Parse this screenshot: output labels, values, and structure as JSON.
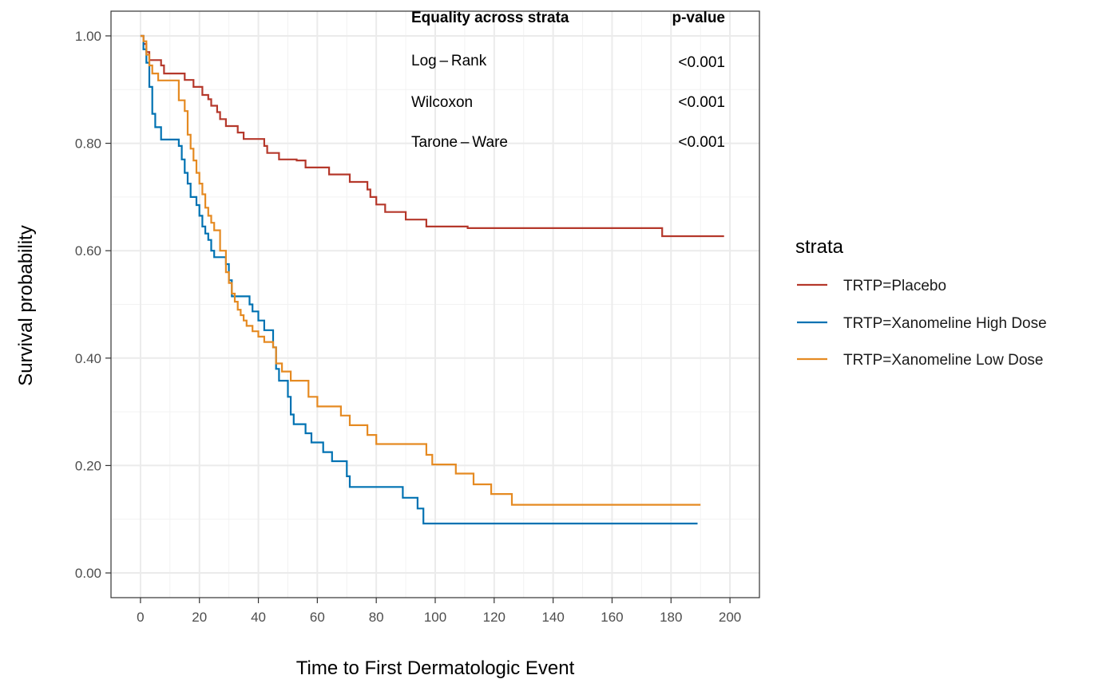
{
  "chart_data": {
    "type": "line",
    "step": true,
    "xlabel": "Time to First Dermatologic Event",
    "ylabel": "Survival probability",
    "xlim": [
      -10,
      210
    ],
    "ylim": [
      -0.046,
      1.046
    ],
    "x_ticks": [
      0,
      20,
      40,
      60,
      80,
      100,
      120,
      140,
      160,
      180,
      200
    ],
    "x_tick_labels": [
      "0",
      "20",
      "40",
      "60",
      "80",
      "100",
      "120",
      "140",
      "160",
      "180",
      "200"
    ],
    "y_ticks": [
      0,
      0.2,
      0.4,
      0.6,
      0.8,
      1.0
    ],
    "y_tick_labels": [
      "0.00",
      "0.20",
      "0.40",
      "0.60",
      "0.80",
      "1.00"
    ],
    "grid": true,
    "legend": {
      "title": "strata",
      "position": "right",
      "entries": [
        "TRTP=Placebo",
        "TRTP=Xanomeline High Dose",
        "TRTP=Xanomeline Low Dose"
      ]
    },
    "series": [
      {
        "name": "TRTP=Placebo",
        "color": "#b5382b",
        "x": [
          0,
          1,
          2,
          3,
          7,
          8,
          15,
          18,
          21,
          23,
          24,
          26,
          27,
          29,
          33,
          35,
          42,
          43,
          47,
          53,
          56,
          64,
          71,
          77,
          78,
          80,
          83,
          90,
          97,
          111,
          177,
          198
        ],
        "y": [
          1.0,
          0.985,
          0.97,
          0.955,
          0.945,
          0.93,
          0.918,
          0.905,
          0.89,
          0.882,
          0.87,
          0.858,
          0.845,
          0.832,
          0.82,
          0.808,
          0.795,
          0.782,
          0.77,
          0.768,
          0.755,
          0.742,
          0.728,
          0.714,
          0.7,
          0.686,
          0.672,
          0.658,
          0.645,
          0.642,
          0.627,
          0.627
        ]
      },
      {
        "name": "TRTP=Xanomeline High Dose",
        "color": "#0072b2",
        "x": [
          0,
          1,
          2,
          3,
          4,
          5,
          7,
          13,
          14,
          15,
          16,
          17,
          19,
          20,
          21,
          22,
          23,
          24,
          25,
          29,
          30,
          31,
          37,
          38,
          40,
          42,
          45,
          46,
          47,
          50,
          51,
          52,
          56,
          58,
          62,
          65,
          70,
          71,
          89,
          94,
          96,
          189
        ],
        "y": [
          1.0,
          0.975,
          0.95,
          0.905,
          0.855,
          0.83,
          0.807,
          0.795,
          0.77,
          0.745,
          0.725,
          0.7,
          0.685,
          0.665,
          0.645,
          0.632,
          0.62,
          0.6,
          0.588,
          0.575,
          0.545,
          0.515,
          0.5,
          0.487,
          0.47,
          0.452,
          0.42,
          0.38,
          0.358,
          0.328,
          0.295,
          0.277,
          0.26,
          0.243,
          0.225,
          0.208,
          0.18,
          0.16,
          0.14,
          0.12,
          0.092,
          0.092
        ]
      },
      {
        "name": "TRTP=Xanomeline Low Dose",
        "color": "#e58a22",
        "x": [
          0,
          1,
          2,
          3,
          4,
          6,
          13,
          15,
          16,
          17,
          18,
          19,
          20,
          21,
          22,
          23,
          24,
          25,
          27,
          29,
          30,
          31,
          32,
          33,
          34,
          35,
          36,
          38,
          40,
          42,
          45,
          46,
          48,
          51,
          57,
          60,
          68,
          71,
          77,
          80,
          97,
          99,
          107,
          113,
          119,
          126,
          190
        ],
        "y": [
          1.0,
          0.99,
          0.965,
          0.945,
          0.93,
          0.917,
          0.88,
          0.86,
          0.816,
          0.79,
          0.768,
          0.745,
          0.725,
          0.705,
          0.68,
          0.665,
          0.652,
          0.638,
          0.6,
          0.56,
          0.54,
          0.52,
          0.505,
          0.49,
          0.48,
          0.47,
          0.46,
          0.45,
          0.44,
          0.43,
          0.42,
          0.39,
          0.375,
          0.358,
          0.328,
          0.31,
          0.293,
          0.275,
          0.257,
          0.24,
          0.22,
          0.202,
          0.185,
          0.165,
          0.147,
          0.127,
          0.127
        ]
      }
    ],
    "annotation_table": {
      "header": [
        "Equality across strata",
        "p-value"
      ],
      "rows": [
        [
          "Log – Rank",
          "<0.001"
        ],
        [
          "Wilcoxon",
          "<0.001"
        ],
        [
          "Tarone – Ware",
          "<0.001"
        ]
      ]
    }
  }
}
